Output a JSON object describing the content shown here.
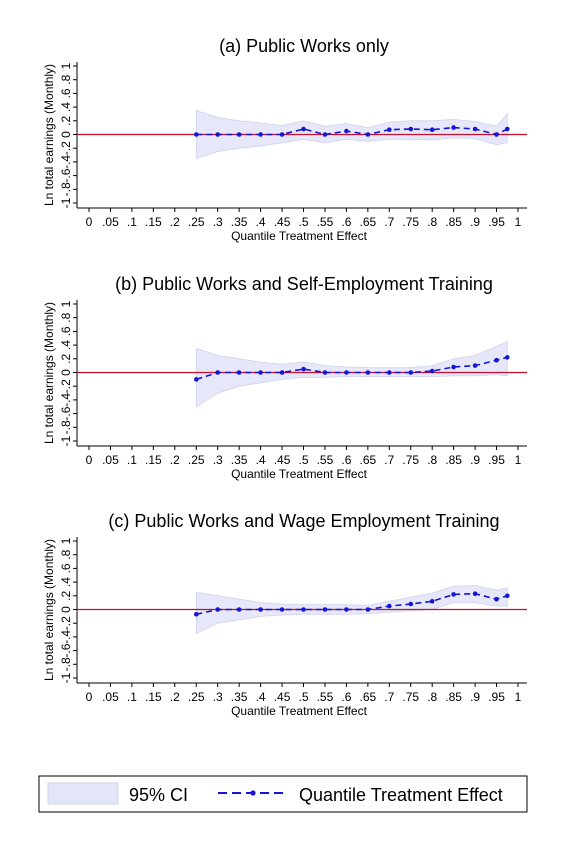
{
  "chart_data": [
    {
      "type": "line",
      "title": "(a) Public Works only",
      "xlabel": "Quantile Treatment Effect",
      "ylabel": "Ln total earnings (Monthly)",
      "xlim": [
        0,
        1
      ],
      "ylim": [
        -1,
        1
      ],
      "x_ticks": [
        "0",
        ".05",
        ".1",
        ".15",
        ".2",
        ".25",
        ".3",
        ".35",
        ".4",
        ".45",
        ".5",
        ".55",
        ".6",
        ".65",
        ".7",
        ".75",
        ".8",
        ".85",
        ".9",
        ".95",
        "1"
      ],
      "y_ticks": [
        "-1",
        "-.8",
        "-.6",
        "-.4",
        "-.2",
        "0",
        ".2",
        ".4",
        ".6",
        ".8",
        "1"
      ],
      "reference_line": {
        "y": 0,
        "color": "#c8102e"
      },
      "series": [
        {
          "name": "Quantile Treatment Effect",
          "x": [
            0.25,
            0.3,
            0.35,
            0.4,
            0.45,
            0.5,
            0.55,
            0.6,
            0.65,
            0.7,
            0.75,
            0.8,
            0.85,
            0.9,
            0.95,
            0.975
          ],
          "values": [
            0.0,
            0.0,
            0.0,
            0.0,
            0.0,
            0.08,
            0.0,
            0.05,
            0.0,
            0.07,
            0.08,
            0.07,
            0.1,
            0.08,
            0.0,
            0.08
          ]
        },
        {
          "name": "95% CI",
          "x": [
            0.25,
            0.3,
            0.35,
            0.4,
            0.45,
            0.5,
            0.55,
            0.6,
            0.65,
            0.7,
            0.75,
            0.8,
            0.85,
            0.9,
            0.95,
            0.975
          ],
          "lower": [
            -0.35,
            -0.25,
            -0.2,
            -0.17,
            -0.12,
            -0.07,
            -0.12,
            -0.07,
            -0.1,
            -0.07,
            -0.07,
            -0.08,
            -0.05,
            -0.06,
            -0.15,
            -0.12
          ],
          "upper": [
            0.35,
            0.25,
            0.2,
            0.17,
            0.13,
            0.2,
            0.12,
            0.16,
            0.1,
            0.18,
            0.2,
            0.2,
            0.22,
            0.19,
            0.12,
            0.3
          ]
        }
      ]
    },
    {
      "type": "line",
      "title": "(b) Public Works and Self-Employment Training",
      "xlabel": "Quantile Treatment Effect",
      "ylabel": "Ln total earnings (Monthly)",
      "xlim": [
        0,
        1
      ],
      "ylim": [
        -1,
        1
      ],
      "x_ticks": [
        "0",
        ".05",
        ".1",
        ".15",
        ".2",
        ".25",
        ".3",
        ".35",
        ".4",
        ".45",
        ".5",
        ".55",
        ".6",
        ".65",
        ".7",
        ".75",
        ".8",
        ".85",
        ".9",
        ".95",
        "1"
      ],
      "y_ticks": [
        "-1",
        "-.8",
        "-.6",
        "-.4",
        "-.2",
        "0",
        ".2",
        ".4",
        ".6",
        ".8",
        "1"
      ],
      "reference_line": {
        "y": 0,
        "color": "#c8102e"
      },
      "series": [
        {
          "name": "Quantile Treatment Effect",
          "x": [
            0.25,
            0.3,
            0.35,
            0.4,
            0.45,
            0.5,
            0.55,
            0.6,
            0.65,
            0.7,
            0.75,
            0.8,
            0.85,
            0.9,
            0.95,
            0.975
          ],
          "values": [
            -0.1,
            0.0,
            0.0,
            0.0,
            0.0,
            0.05,
            0.0,
            0.0,
            0.0,
            0.0,
            0.0,
            0.02,
            0.08,
            0.1,
            0.18,
            0.22
          ]
        },
        {
          "name": "95% CI",
          "x": [
            0.25,
            0.3,
            0.35,
            0.4,
            0.45,
            0.5,
            0.55,
            0.6,
            0.65,
            0.7,
            0.75,
            0.8,
            0.85,
            0.9,
            0.95,
            0.975
          ],
          "lower": [
            -0.5,
            -0.3,
            -0.2,
            -0.15,
            -0.1,
            -0.07,
            -0.07,
            -0.06,
            -0.06,
            -0.06,
            -0.06,
            -0.06,
            -0.05,
            -0.05,
            -0.03,
            -0.05
          ],
          "upper": [
            0.35,
            0.25,
            0.2,
            0.15,
            0.12,
            0.15,
            0.1,
            0.08,
            0.07,
            0.07,
            0.07,
            0.1,
            0.2,
            0.25,
            0.38,
            0.45
          ]
        }
      ]
    },
    {
      "type": "line",
      "title": "(c) Public Works and Wage Employment Training",
      "xlabel": "Quantile Treatment Effect",
      "ylabel": "Ln total earnings (Monthly)",
      "xlim": [
        0,
        1
      ],
      "ylim": [
        -1,
        1
      ],
      "x_ticks": [
        "0",
        ".05",
        ".1",
        ".15",
        ".2",
        ".25",
        ".3",
        ".35",
        ".4",
        ".45",
        ".5",
        ".55",
        ".6",
        ".65",
        ".7",
        ".75",
        ".8",
        ".85",
        ".9",
        ".95",
        "1"
      ],
      "y_ticks": [
        "-1",
        "-.8",
        "-.6",
        "-.4",
        "-.2",
        "0",
        ".2",
        ".4",
        ".6",
        ".8",
        "1"
      ],
      "reference_line": {
        "y": 0,
        "color": "#c8102e"
      },
      "series": [
        {
          "name": "Quantile Treatment Effect",
          "x": [
            0.25,
            0.3,
            0.35,
            0.4,
            0.45,
            0.5,
            0.55,
            0.6,
            0.65,
            0.7,
            0.75,
            0.8,
            0.85,
            0.9,
            0.95,
            0.975
          ],
          "values": [
            -0.07,
            0.0,
            0.0,
            0.0,
            0.0,
            0.0,
            0.0,
            0.0,
            0.0,
            0.05,
            0.08,
            0.12,
            0.22,
            0.23,
            0.15,
            0.2
          ]
        },
        {
          "name": "95% CI",
          "x": [
            0.25,
            0.3,
            0.35,
            0.4,
            0.45,
            0.5,
            0.55,
            0.6,
            0.65,
            0.7,
            0.75,
            0.8,
            0.85,
            0.9,
            0.95,
            0.975
          ],
          "lower": [
            -0.35,
            -0.2,
            -0.15,
            -0.1,
            -0.08,
            -0.07,
            -0.07,
            -0.07,
            -0.06,
            -0.04,
            -0.02,
            0.0,
            0.1,
            0.1,
            0.05,
            0.05
          ],
          "upper": [
            0.25,
            0.2,
            0.15,
            0.1,
            0.08,
            0.07,
            0.07,
            0.07,
            0.06,
            0.12,
            0.18,
            0.24,
            0.34,
            0.35,
            0.28,
            0.32
          ]
        }
      ]
    }
  ],
  "legend": {
    "ci_label": "95% CI",
    "line_label": "Quantile Treatment Effect"
  },
  "colors": {
    "ci_fill": "#e3e6f8",
    "ci_edge": "#cfd3ee",
    "line": "#1515d4",
    "zero_line": "#c8102e",
    "axis": "#000000"
  }
}
